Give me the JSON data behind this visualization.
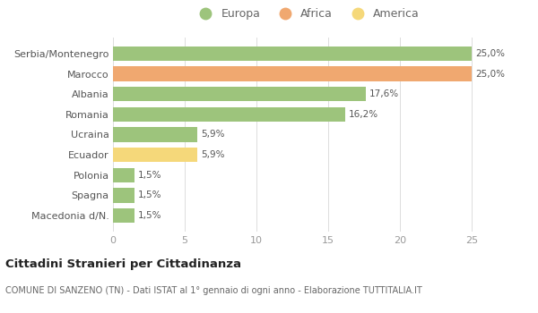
{
  "categories": [
    "Macedonia d/N.",
    "Spagna",
    "Polonia",
    "Ecuador",
    "Ucraina",
    "Romania",
    "Albania",
    "Marocco",
    "Serbia/Montenegro"
  ],
  "values": [
    1.5,
    1.5,
    1.5,
    5.9,
    5.9,
    16.2,
    17.6,
    25.0,
    25.0
  ],
  "colors": [
    "#9dc47c",
    "#9dc47c",
    "#9dc47c",
    "#f5d87a",
    "#9dc47c",
    "#9dc47c",
    "#9dc47c",
    "#f0a870",
    "#9dc47c"
  ],
  "labels": [
    "1,5%",
    "1,5%",
    "1,5%",
    "5,9%",
    "5,9%",
    "16,2%",
    "17,6%",
    "25,0%",
    "25,0%"
  ],
  "legend_labels": [
    "Europa",
    "Africa",
    "America"
  ],
  "legend_colors": [
    "#9dc47c",
    "#f0a870",
    "#f5d87a"
  ],
  "title": "Cittadini Stranieri per Cittadinanza",
  "subtitle": "COMUNE DI SANZENO (TN) - Dati ISTAT al 1° gennaio di ogni anno - Elaborazione TUTTITALIA.IT",
  "xlim": [
    0,
    27
  ],
  "xticks": [
    0,
    5,
    10,
    15,
    20,
    25
  ],
  "background_color": "#ffffff",
  "bar_background": "#ffffff"
}
